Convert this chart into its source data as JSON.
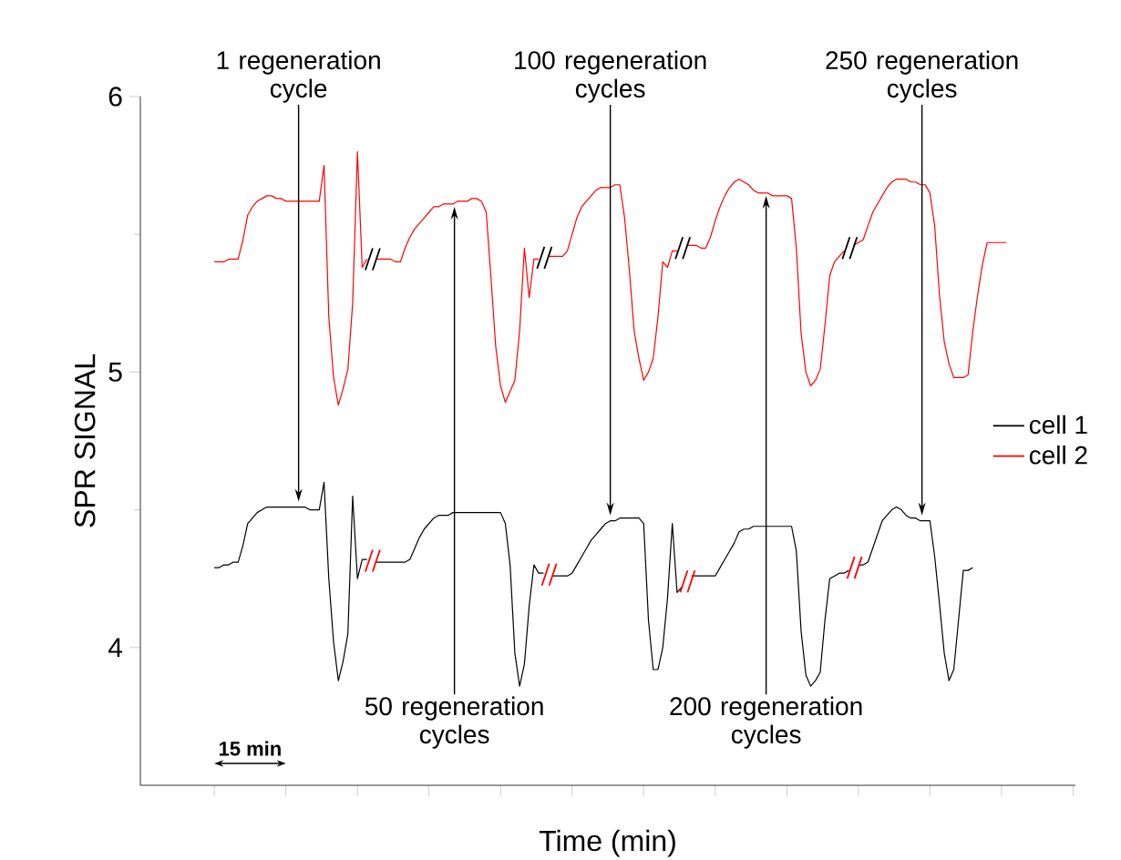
{
  "chart_data": {
    "type": "line",
    "xlabel": "Time (min)",
    "ylabel": "SPR SIGNAL",
    "ylim": [
      3.5,
      6
    ],
    "categories": [
      null,
      null,
      null,
      null,
      null,
      null,
      null,
      null,
      null,
      null,
      null,
      null,
      null,
      null,
      null,
      null,
      null,
      null,
      null,
      null,
      null,
      null,
      null,
      null,
      null,
      null,
      null,
      null,
      null,
      null,
      null,
      null,
      null,
      null,
      null,
      null,
      null,
      null,
      null,
      null,
      null,
      null,
      null,
      null,
      null,
      null,
      null,
      null,
      null,
      null,
      null,
      null,
      null,
      null,
      null,
      null,
      null,
      null,
      null,
      null,
      null,
      null,
      null,
      null,
      null,
      null,
      null,
      null,
      null,
      null,
      null,
      null,
      null,
      null,
      null,
      null,
      null,
      null,
      null,
      null,
      null,
      null,
      null,
      null,
      null,
      null,
      null,
      null,
      null,
      null,
      null,
      null,
      null,
      null,
      null,
      null,
      null,
      null,
      null,
      null,
      null,
      null,
      null,
      null,
      null,
      null,
      null,
      null,
      null,
      null,
      null,
      null,
      null,
      null,
      null,
      null,
      null,
      null,
      null,
      null,
      null,
      null,
      null,
      null,
      null,
      null,
      null,
      null,
      null,
      null,
      null,
      null,
      null,
      null,
      null,
      null,
      null,
      null,
      null,
      null,
      null,
      null,
      null,
      null,
      null,
      null,
      null,
      null,
      null,
      null,
      null,
      null,
      null,
      null,
      null,
      null,
      null,
      null,
      null,
      null,
      null,
      null,
      null,
      null,
      null,
      null,
      null,
      null,
      null,
      null,
      null,
      null,
      null,
      null,
      null,
      null,
      null,
      null,
      null,
      null,
      null,
      null,
      null,
      null,
      null,
      null,
      null,
      null,
      null,
      null,
      null,
      null,
      null,
      null,
      null,
      null
    ],
    "yticks": [
      4,
      {
        "value": 4.5,
        "label": null
      },
      5,
      {
        "value": 5.5,
        "label": null
      },
      6
    ],
    "tick_labels": "y",
    "legend": "right",
    "series": [
      {
        "name": "cell 1",
        "color": "#000000",
        "values": [
          null,
          null,
          null,
          null,
          null,
          null,
          null,
          null,
          null,
          null,
          null,
          null,
          null,
          null,
          null,
          4.29,
          4.29,
          4.3,
          4.3,
          4.31,
          4.31,
          4.37,
          4.45,
          4.47,
          4.49,
          4.5,
          4.51,
          4.51,
          4.51,
          4.51,
          4.51,
          4.51,
          4.51,
          4.51,
          4.51,
          4.5,
          4.5,
          4.5,
          4.6,
          4.25,
          4.02,
          3.88,
          3.95,
          4.05,
          4.55,
          4.25,
          4.32,
          4.32,
          null,
          4.31,
          4.31,
          4.31,
          4.31,
          4.31,
          4.31,
          4.31,
          4.32,
          4.36,
          4.4,
          4.43,
          4.45,
          4.47,
          4.48,
          4.48,
          4.48,
          4.49,
          4.49,
          4.49,
          4.49,
          4.49,
          4.49,
          4.49,
          4.49,
          4.49,
          4.49,
          4.49,
          4.45,
          4.3,
          3.98,
          3.86,
          3.94,
          4.15,
          4.3,
          4.27,
          4.27,
          null,
          4.26,
          4.26,
          4.26,
          4.26,
          4.27,
          4.3,
          4.33,
          4.36,
          4.39,
          4.41,
          4.43,
          4.45,
          4.46,
          4.46,
          4.47,
          4.47,
          4.47,
          4.47,
          4.47,
          4.45,
          4.1,
          3.92,
          3.92,
          4.0,
          4.18,
          4.45,
          4.2,
          4.22,
          null,
          4.26,
          4.26,
          4.26,
          4.26,
          4.26,
          4.26,
          4.29,
          4.32,
          4.35,
          4.38,
          4.42,
          4.43,
          4.43,
          4.44,
          4.44,
          4.44,
          4.44,
          4.44,
          4.44,
          4.44,
          4.44,
          4.44,
          4.35,
          4.06,
          3.9,
          3.86,
          3.88,
          3.91,
          4.1,
          4.25,
          4.26,
          4.27,
          4.27,
          4.28,
          null,
          4.3,
          4.3,
          4.31,
          4.36,
          4.41,
          4.46,
          4.48,
          4.5,
          4.51,
          4.5,
          4.48,
          4.47,
          4.47,
          4.46,
          4.46,
          4.46,
          4.33,
          4.16,
          3.98,
          3.88,
          3.92,
          4.1,
          4.28,
          4.28,
          4.29,
          null,
          null,
          null,
          null,
          null,
          null,
          null,
          null,
          null,
          null,
          null,
          null,
          null,
          null,
          null,
          null,
          null,
          null,
          null,
          null,
          null
        ]
      },
      {
        "name": "cell 2",
        "color": "#ff0000",
        "values": [
          null,
          null,
          null,
          null,
          null,
          null,
          null,
          null,
          null,
          null,
          null,
          null,
          null,
          null,
          null,
          5.4,
          5.4,
          5.4,
          5.41,
          5.41,
          5.41,
          5.48,
          5.57,
          5.6,
          5.62,
          5.63,
          5.64,
          5.64,
          5.63,
          5.63,
          5.62,
          5.62,
          5.62,
          5.62,
          5.62,
          5.62,
          5.62,
          5.62,
          5.75,
          5.2,
          4.98,
          4.88,
          4.94,
          5.01,
          5.25,
          5.8,
          5.38,
          5.41,
          null,
          5.41,
          5.41,
          5.41,
          5.41,
          5.4,
          5.4,
          5.45,
          5.49,
          5.52,
          5.54,
          5.56,
          5.58,
          5.6,
          5.6,
          5.61,
          5.61,
          5.61,
          5.62,
          5.62,
          5.62,
          5.63,
          5.63,
          5.62,
          5.58,
          5.34,
          5.09,
          4.95,
          4.89,
          4.93,
          4.97,
          5.15,
          5.45,
          5.27,
          5.41,
          5.41,
          null,
          5.42,
          5.42,
          5.42,
          5.42,
          5.44,
          5.5,
          5.56,
          5.6,
          5.62,
          5.64,
          5.66,
          5.67,
          5.67,
          5.67,
          5.68,
          5.68,
          5.56,
          5.37,
          5.15,
          5.05,
          4.97,
          5.0,
          5.05,
          5.2,
          5.4,
          5.38,
          5.44,
          5.44,
          null,
          5.46,
          5.46,
          5.46,
          5.45,
          5.45,
          5.49,
          5.55,
          5.6,
          5.64,
          5.67,
          5.69,
          5.7,
          5.69,
          5.68,
          5.66,
          5.65,
          5.65,
          5.65,
          5.64,
          5.64,
          5.64,
          5.64,
          5.63,
          5.45,
          5.14,
          5.0,
          4.95,
          4.97,
          5.01,
          5.17,
          5.35,
          5.4,
          5.42,
          5.44,
          null,
          5.46,
          5.47,
          5.48,
          5.53,
          5.58,
          5.61,
          5.64,
          5.67,
          5.69,
          5.7,
          5.7,
          5.7,
          5.69,
          5.69,
          5.68,
          5.68,
          5.65,
          5.53,
          5.28,
          5.11,
          5.03,
          4.98,
          4.98,
          4.98,
          4.99,
          5.15,
          5.28,
          5.39,
          5.47,
          5.47,
          5.47,
          5.47,
          5.47,
          null,
          null,
          null,
          null,
          null,
          null,
          null,
          null,
          null,
          null,
          null,
          null,
          null,
          null
        ]
      }
    ],
    "annotations": [
      "1 regeneration cycle",
      "50 regeneration cycles",
      "100 regeneration cycles",
      "200 regeneration cycles",
      "250 regeneration cycles",
      "15 min"
    ]
  }
}
